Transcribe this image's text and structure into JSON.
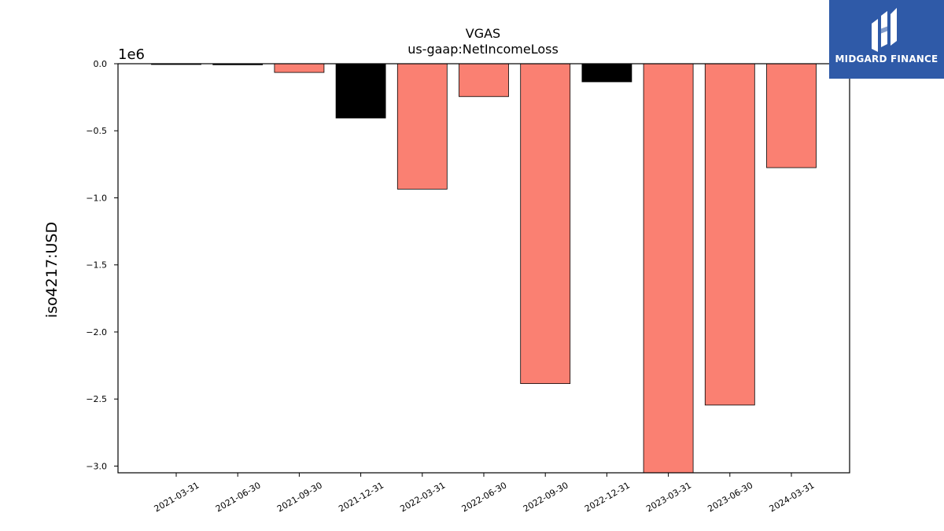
{
  "chart_data": {
    "type": "bar",
    "title": "VGAS",
    "subtitle": "us-gaap:NetIncomeLoss",
    "xlabel": "",
    "ylabel": "iso4217:USD",
    "y_offset_label": "1e6",
    "ylim": [
      -3.05,
      0.0
    ],
    "y_ticks": [
      0.0,
      -0.5,
      -1.0,
      -1.5,
      -2.0,
      -2.5,
      -3.0
    ],
    "y_tick_labels": [
      "0.0",
      "−0.5",
      "−1.0",
      "−1.5",
      "−2.0",
      "−2.5",
      "−3.0"
    ],
    "categories": [
      "2021-03-31",
      "2021-06-30",
      "2021-09-30",
      "2021-12-31",
      "2022-03-31",
      "2022-06-30",
      "2022-09-30",
      "2022-12-31",
      "2023-03-31",
      "2023-06-30",
      "2024-03-31"
    ],
    "values": [
      -0.002,
      -0.008,
      -0.065,
      -0.405,
      -0.935,
      -0.245,
      -2.385,
      -0.135,
      -3.06,
      -2.545,
      -0.775
    ],
    "bar_colors": [
      "#000000",
      "#000000",
      "#fa8072",
      "#000000",
      "#fa8072",
      "#fa8072",
      "#fa8072",
      "#000000",
      "#fa8072",
      "#fa8072",
      "#fa8072"
    ],
    "grid": false
  },
  "logo": {
    "text": "MIDGARD FINANCE",
    "color": "#2f5aa8"
  }
}
